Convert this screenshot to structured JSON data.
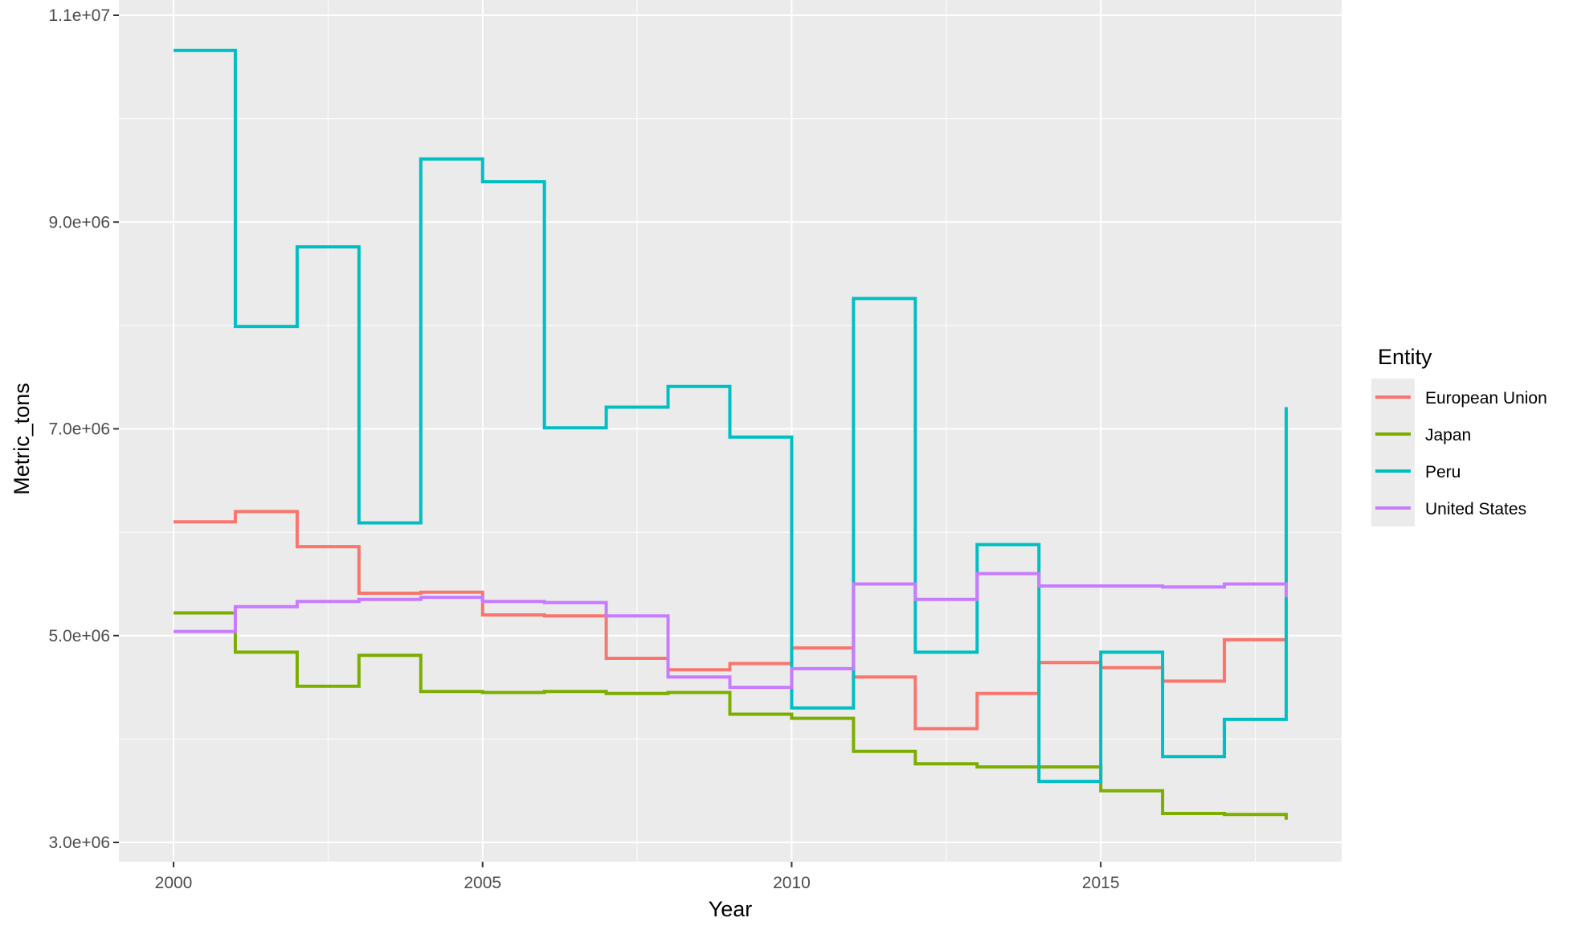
{
  "chart_data": {
    "type": "line",
    "subtype": "step",
    "xlabel": "Year",
    "ylabel": "Metric_tons",
    "xlim": [
      2000,
      2018
    ],
    "ylim": [
      3000000,
      11000000
    ],
    "x_ticks": [
      2000,
      2005,
      2010,
      2015
    ],
    "x_tick_labels": [
      "2000",
      "2005",
      "2010",
      "2015"
    ],
    "y_ticks": [
      3000000,
      5000000,
      7000000,
      9000000,
      11000000
    ],
    "y_tick_labels": [
      "3.0e+06",
      "5.0e+06",
      "7.0e+06",
      "9.0e+06",
      "1.1e+07"
    ],
    "grid": true,
    "legend": {
      "title": "Entity",
      "position": "right"
    },
    "x": [
      2000,
      2001,
      2002,
      2003,
      2004,
      2005,
      2006,
      2007,
      2008,
      2009,
      2010,
      2011,
      2012,
      2013,
      2014,
      2015,
      2016,
      2017,
      2018
    ],
    "series": [
      {
        "name": "European Union",
        "color": "#F8766D",
        "values": [
          6100000,
          6200000,
          5860000,
          5410000,
          5420000,
          5200000,
          5190000,
          4780000,
          4670000,
          4730000,
          4880000,
          4600000,
          4100000,
          4440000,
          4740000,
          4690000,
          4560000,
          4960000,
          4960000
        ]
      },
      {
        "name": "Japan",
        "color": "#7CAE00",
        "values": [
          5220000,
          4840000,
          4510000,
          4810000,
          4460000,
          4450000,
          4460000,
          4440000,
          4450000,
          4240000,
          4200000,
          3880000,
          3760000,
          3730000,
          3730000,
          3500000,
          3280000,
          3270000,
          3220000
        ]
      },
      {
        "name": "Peru",
        "color": "#00BFC4",
        "values": [
          10660000,
          7990000,
          8760000,
          6090000,
          9610000,
          9390000,
          7010000,
          7210000,
          7410000,
          6920000,
          4300000,
          8260000,
          4840000,
          5880000,
          3590000,
          4840000,
          3830000,
          4190000,
          7210000
        ]
      },
      {
        "name": "United States",
        "color": "#C77CFF",
        "values": [
          5040000,
          5280000,
          5330000,
          5350000,
          5370000,
          5330000,
          5320000,
          5190000,
          4600000,
          4500000,
          4680000,
          5500000,
          5350000,
          5600000,
          5480000,
          5480000,
          5470000,
          5500000,
          5370000
        ]
      }
    ]
  }
}
